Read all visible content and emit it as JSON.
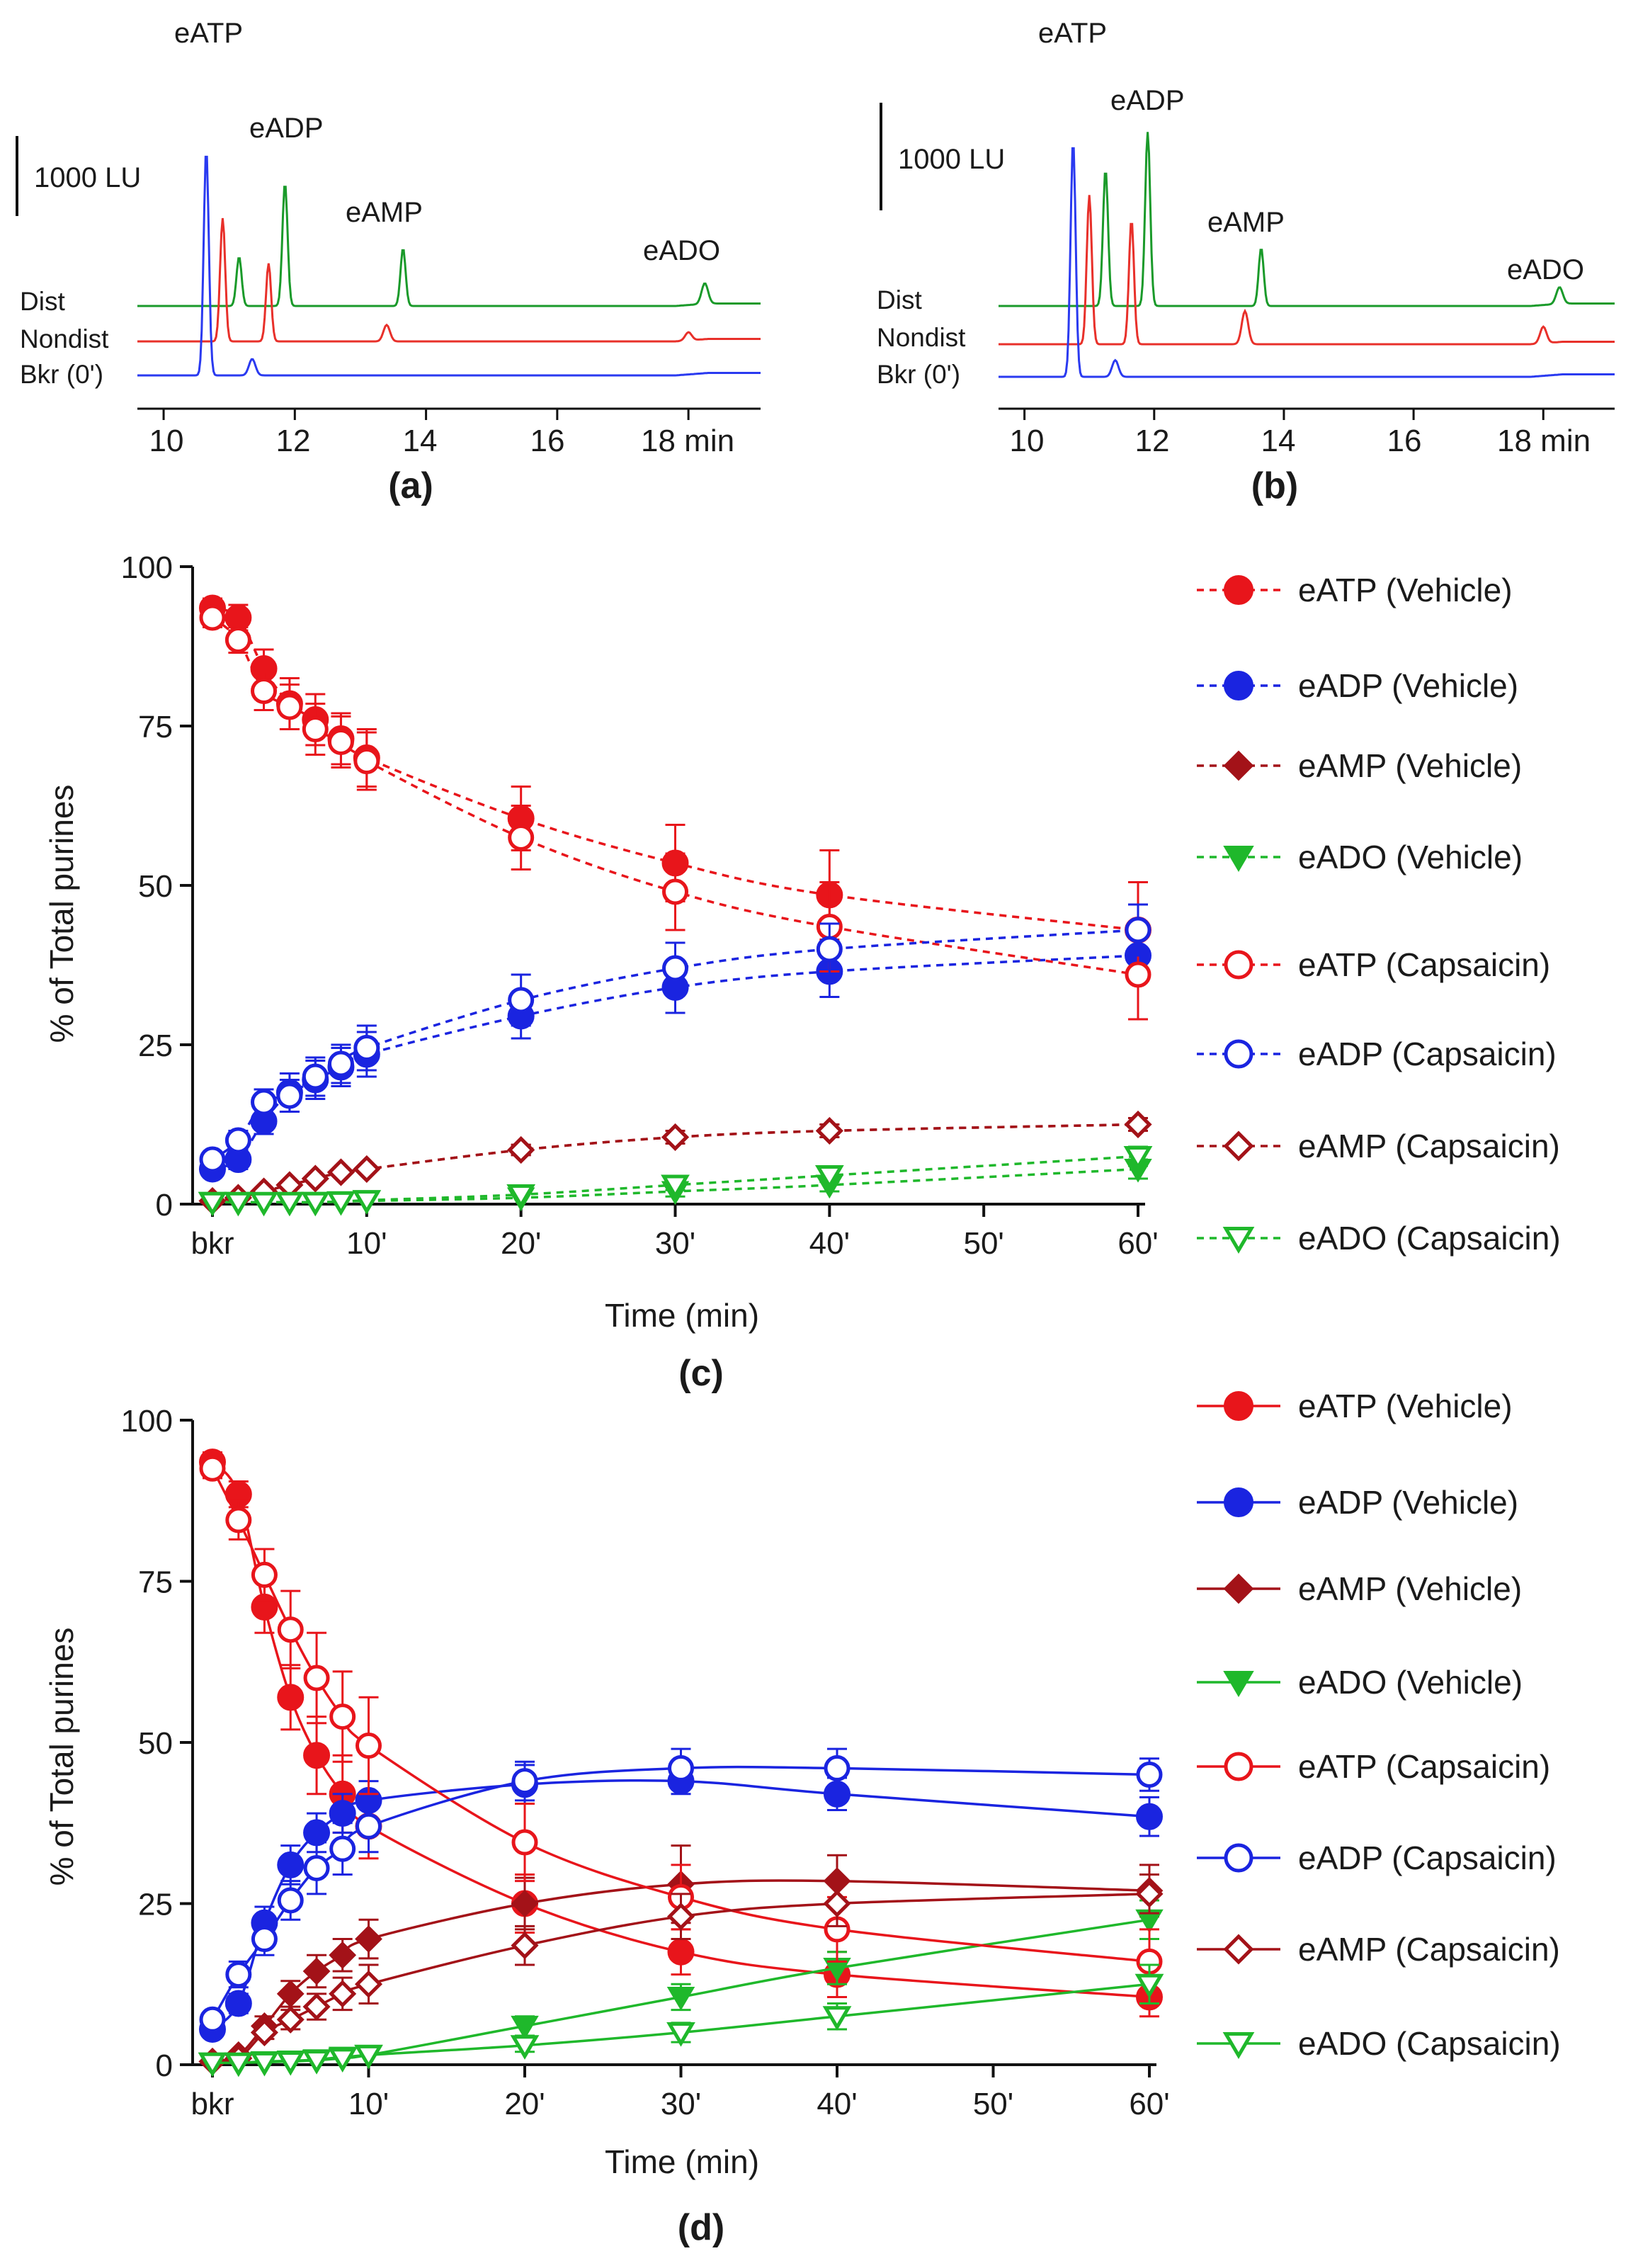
{
  "panels": {
    "a": "(a)",
    "b": "(b)",
    "c": "(c)",
    "d": "(d)"
  },
  "chromatograms": [
    {
      "id": "a",
      "scale_label": "1000 LU",
      "peak_labels": [
        "eATP",
        "eADP",
        "eAMP",
        "eADO"
      ],
      "trace_labels": [
        "Dist",
        "Nondist",
        "Bkr (0')"
      ],
      "tick_labels": [
        "10",
        "12",
        "14",
        "16",
        "18 min"
      ],
      "x_ticks": [
        10,
        12,
        14,
        16,
        18
      ],
      "xlim": [
        9.6,
        19.1
      ],
      "colors": {
        "Dist": "#1a9a2a",
        "Nondist": "#e8302a",
        "Bkr (0')": "#2a3af0"
      },
      "traces": {
        "Bkr (0')": [
          [
            10.65,
            5500
          ],
          [
            11.35,
            400
          ]
        ],
        "Nondist": [
          [
            10.9,
            3000
          ],
          [
            11.6,
            1900
          ],
          [
            13.4,
            400
          ],
          [
            18.0,
            200
          ]
        ],
        "Dist": [
          [
            11.15,
            1200
          ],
          [
            11.85,
            3000
          ],
          [
            13.65,
            1400
          ],
          [
            18.25,
            500
          ]
        ]
      },
      "peak_positions": [
        10.7,
        12.0,
        13.6,
        18.5
      ]
    },
    {
      "id": "b",
      "scale_label": "1000 LU",
      "peak_labels": [
        "eATP",
        "eADP",
        "eAMP",
        "eADO"
      ],
      "trace_labels": [
        "Dist",
        "Nondist",
        "Bkr (0')"
      ],
      "tick_labels": [
        "10",
        "12",
        "14",
        "16",
        "18 min"
      ],
      "x_ticks": [
        10,
        12,
        14,
        16,
        18
      ],
      "xlim": [
        9.6,
        19.1
      ],
      "colors": {
        "Dist": "#1a9a2a",
        "Nondist": "#e8302a",
        "Bkr (0')": "#2a3af0"
      },
      "traces": {
        "Bkr (0')": [
          [
            10.75,
            5700
          ],
          [
            11.4,
            400
          ]
        ],
        "Nondist": [
          [
            11.0,
            3600
          ],
          [
            11.65,
            3000
          ],
          [
            13.4,
            800
          ],
          [
            18.0,
            400
          ]
        ],
        "Dist": [
          [
            11.25,
            3300
          ],
          [
            11.9,
            4200
          ],
          [
            13.65,
            1400
          ],
          [
            18.25,
            400
          ]
        ]
      },
      "peak_positions": [
        10.9,
        12.0,
        13.6,
        18.3
      ]
    }
  ],
  "chart_data": [
    {
      "id": "c",
      "type": "line",
      "line_style": "dashed",
      "ylabel": "% of Total purines",
      "xlabel": "Time (min)",
      "ylim": [
        0,
        100
      ],
      "yticks": [
        0,
        25,
        50,
        75,
        100
      ],
      "xlim": [
        0,
        60
      ],
      "xticks": [
        0,
        10,
        20,
        30,
        40,
        50,
        60
      ],
      "xtick_labels": [
        "bkr",
        "10'",
        "20'",
        "30'",
        "40'",
        "50'",
        "60'"
      ],
      "x": [
        0,
        1.67,
        3.33,
        5,
        6.67,
        8.33,
        10,
        20,
        30,
        40,
        60
      ],
      "series": [
        {
          "name": "eATP (Vehicle)",
          "color": "#e8151b",
          "marker": "circle",
          "filled": true,
          "values": [
            93.5,
            92,
            84,
            78.5,
            76,
            73,
            70,
            60.5,
            53.5,
            48.5,
            43
          ],
          "err": [
            1.5,
            2,
            3,
            4,
            4,
            4,
            4.5,
            5,
            6,
            7,
            7.5
          ]
        },
        {
          "name": "eADP (Vehicle)",
          "color": "#1a24e0",
          "marker": "circle",
          "filled": true,
          "values": [
            5.5,
            7,
            13,
            17.5,
            19.5,
            21.5,
            23.5,
            29.5,
            34,
            36.5,
            39
          ],
          "err": [
            1,
            1.5,
            2,
            3,
            3,
            3,
            3.5,
            3.5,
            4,
            4,
            4
          ]
        },
        {
          "name": "eAMP (Vehicle)",
          "color": "#a31218",
          "marker": "diamond",
          "filled": true,
          "values": [
            0.5,
            1,
            2,
            3,
            4,
            5,
            5.5,
            8.5,
            10.5,
            11.5,
            12.5
          ],
          "err": [
            0.3,
            0.3,
            0.5,
            0.5,
            0.5,
            0.5,
            0.5,
            0.8,
            1,
            1,
            1
          ]
        },
        {
          "name": "eADO (Vehicle)",
          "color": "#1fb82b",
          "marker": "tri-down",
          "filled": true,
          "values": [
            0.3,
            0.3,
            0.3,
            0.3,
            0.3,
            0.4,
            0.5,
            1,
            2,
            3,
            5.5
          ],
          "err": [
            0.2,
            0.2,
            0.2,
            0.2,
            0.2,
            0.2,
            0.3,
            0.5,
            0.8,
            1,
            1.5
          ]
        },
        {
          "name": "eATP (Capsaicin)",
          "color": "#e8151b",
          "marker": "circle",
          "filled": false,
          "values": [
            92,
            88.5,
            80.5,
            78,
            74.5,
            72.5,
            69.5,
            57.5,
            49,
            43.5,
            36
          ],
          "err": [
            1.5,
            2,
            3,
            3.5,
            4,
            4,
            4.5,
            5,
            6,
            7,
            7
          ]
        },
        {
          "name": "eADP (Capsaicin)",
          "color": "#1a24e0",
          "marker": "circle",
          "filled": false,
          "values": [
            7,
            10,
            16,
            17,
            20,
            22,
            24.5,
            32,
            37,
            40,
            43
          ],
          "err": [
            1,
            1.5,
            2,
            2.5,
            3,
            3,
            3.5,
            4,
            4,
            4,
            4
          ]
        },
        {
          "name": "eAMP (Capsaicin)",
          "color": "#a31218",
          "marker": "diamond",
          "filled": false,
          "values": [
            0.5,
            1,
            2,
            3,
            4,
            5,
            5.5,
            8.5,
            10.5,
            11.5,
            12.5
          ],
          "err": [
            0.3,
            0.3,
            0.5,
            0.5,
            0.5,
            0.5,
            0.5,
            0.8,
            1,
            1,
            1
          ]
        },
        {
          "name": "eADO (Capsaicin)",
          "color": "#1fb82b",
          "marker": "tri-down",
          "filled": false,
          "values": [
            0.3,
            0.3,
            0.3,
            0.3,
            0.3,
            0.4,
            0.6,
            1.5,
            3,
            4.5,
            7.5
          ],
          "err": [
            0.2,
            0.2,
            0.2,
            0.2,
            0.2,
            0.2,
            0.3,
            0.5,
            0.8,
            1,
            1.5
          ]
        }
      ]
    },
    {
      "id": "d",
      "type": "line",
      "line_style": "solid",
      "ylabel": "% of Total purines",
      "xlabel": "Time (min)",
      "ylim": [
        0,
        100
      ],
      "yticks": [
        0,
        25,
        50,
        75,
        100
      ],
      "xlim": [
        0,
        60
      ],
      "xticks": [
        0,
        10,
        20,
        30,
        40,
        50,
        60
      ],
      "xtick_labels": [
        "bkr",
        "10'",
        "20'",
        "30'",
        "40'",
        "50'",
        "60'"
      ],
      "x": [
        0,
        1.67,
        3.33,
        5,
        6.67,
        8.33,
        10,
        20,
        30,
        40,
        60
      ],
      "series": [
        {
          "name": "eATP (Vehicle)",
          "color": "#e8151b",
          "marker": "circle",
          "filled": true,
          "values": [
            93.5,
            88.5,
            71,
            57,
            48,
            42,
            37,
            25,
            17.5,
            14,
            10.5
          ],
          "err": [
            1.5,
            2,
            4,
            5,
            6,
            6,
            5,
            4.5,
            3.5,
            3.5,
            3
          ]
        },
        {
          "name": "eADP (Vehicle)",
          "color": "#1a24e0",
          "marker": "circle",
          "filled": true,
          "values": [
            5.5,
            9.5,
            22,
            31,
            36,
            39,
            41,
            43.5,
            44,
            42,
            38.5
          ],
          "err": [
            1,
            1.5,
            2.5,
            3,
            3,
            3,
            3,
            3,
            2,
            2.5,
            3
          ]
        },
        {
          "name": "eAMP (Vehicle)",
          "color": "#a31218",
          "marker": "diamond",
          "filled": true,
          "values": [
            0.5,
            1.5,
            6,
            11,
            14.5,
            17,
            19.5,
            25,
            28,
            28.5,
            27
          ],
          "err": [
            0.3,
            0.5,
            1.5,
            2,
            2.5,
            2.5,
            3,
            4,
            6,
            4,
            4
          ]
        },
        {
          "name": "eADO (Vehicle)",
          "color": "#1fb82b",
          "marker": "tri-down",
          "filled": true,
          "values": [
            0.3,
            0.3,
            0.5,
            0.6,
            0.8,
            1.2,
            1.5,
            6,
            10.5,
            15,
            22.5
          ],
          "err": [
            0.2,
            0.2,
            0.3,
            0.3,
            0.4,
            0.5,
            0.6,
            1.5,
            2,
            2.5,
            3
          ]
        },
        {
          "name": "eATP (Capsaicin)",
          "color": "#e8151b",
          "marker": "circle",
          "filled": false,
          "values": [
            92.5,
            84.5,
            76,
            67.5,
            60,
            54,
            49.5,
            34.5,
            26,
            21,
            16
          ],
          "err": [
            1.5,
            3,
            4,
            6,
            7,
            7,
            7.5,
            6,
            5,
            5,
            5
          ]
        },
        {
          "name": "eADP (Capsaicin)",
          "color": "#1a24e0",
          "marker": "circle",
          "filled": false,
          "values": [
            7,
            14,
            19.5,
            25.5,
            30.5,
            33.5,
            37,
            44,
            46,
            46,
            45
          ],
          "err": [
            1,
            2,
            2.5,
            3,
            4,
            4,
            4,
            3,
            3,
            3,
            2.5
          ]
        },
        {
          "name": "eAMP (Capsaicin)",
          "color": "#a31218",
          "marker": "diamond",
          "filled": false,
          "values": [
            0.5,
            1,
            5,
            7,
            9,
            11,
            12.5,
            18.5,
            23,
            25,
            26.5
          ],
          "err": [
            0.3,
            0.5,
            1,
            1.5,
            2,
            2.5,
            3,
            3,
            3.5,
            3.5,
            3
          ]
        },
        {
          "name": "eADO (Capsaicin)",
          "color": "#1fb82b",
          "marker": "tri-down",
          "filled": false,
          "values": [
            0.3,
            0.3,
            0.4,
            0.5,
            0.7,
            1,
            1.5,
            3,
            5,
            7.5,
            12.5
          ],
          "err": [
            0.2,
            0.2,
            0.3,
            0.3,
            0.4,
            0.5,
            0.6,
            1,
            1.5,
            2,
            3
          ]
        }
      ]
    }
  ]
}
